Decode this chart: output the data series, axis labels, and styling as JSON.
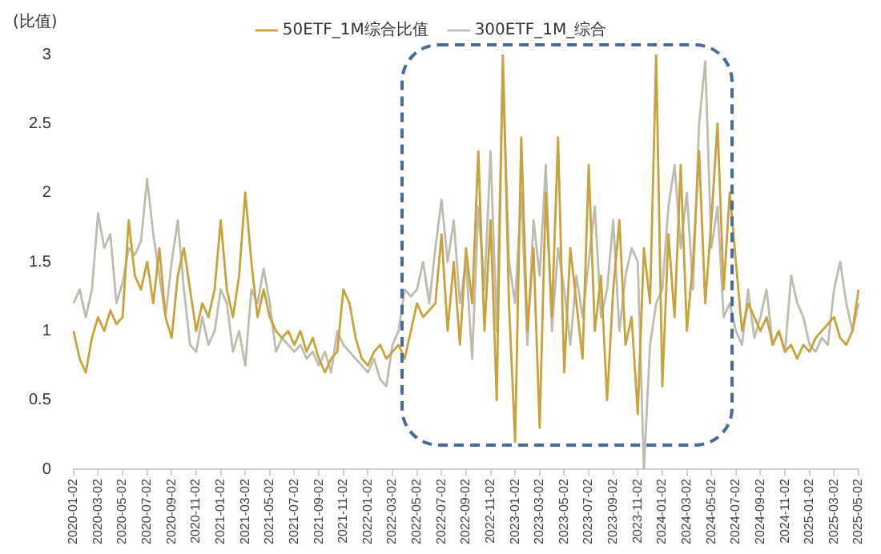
{
  "chart_data": {
    "type": "line",
    "ylabel": "(比值)",
    "categories": [
      "2020-01-02",
      null,
      null,
      null,
      "2020-03-02",
      null,
      null,
      null,
      "2020-05-02",
      null,
      null,
      null,
      "2020-07-02",
      null,
      null,
      null,
      "2020-09-02",
      null,
      null,
      null,
      "2020-11-02",
      null,
      null,
      null,
      "2021-01-02",
      null,
      null,
      null,
      "2021-03-02",
      null,
      null,
      null,
      "2021-05-02",
      null,
      null,
      null,
      "2021-07-02",
      null,
      null,
      null,
      "2021-09-02",
      null,
      null,
      null,
      "2021-11-02",
      null,
      null,
      null,
      "2022-01-02",
      null,
      null,
      null,
      "2022-03-02",
      null,
      null,
      null,
      "2022-05-02",
      null,
      null,
      null,
      "2022-07-02",
      null,
      null,
      null,
      "2022-09-02",
      null,
      null,
      null,
      "2022-11-02",
      null,
      null,
      null,
      "2023-01-02",
      null,
      null,
      null,
      "2023-03-02",
      null,
      null,
      null,
      "2023-05-02",
      null,
      null,
      null,
      "2023-07-02",
      null,
      null,
      null,
      "2023-09-02",
      null,
      null,
      null,
      "2023-11-02",
      null,
      null,
      null,
      "2024-01-02",
      null,
      null,
      null,
      "2024-03-02",
      null,
      null,
      null,
      "2024-05-02",
      null,
      null,
      null,
      "2024-07-02",
      null,
      null,
      null,
      "2024-09-02",
      null,
      null,
      null,
      "2024-11-02",
      null,
      null,
      null,
      "2025-01-02",
      null,
      null,
      null,
      "2025-03-02",
      null,
      null,
      null,
      "2025-05-02"
    ],
    "series": [
      {
        "name": "50ETF_1M综合比值",
        "color": "#c9a23c",
        "values": [
          1.0,
          0.8,
          0.7,
          0.95,
          1.1,
          1.0,
          1.15,
          1.05,
          1.1,
          1.8,
          1.4,
          1.3,
          1.5,
          1.2,
          1.6,
          1.1,
          0.95,
          1.4,
          1.6,
          1.3,
          1.0,
          1.2,
          1.1,
          1.3,
          1.8,
          1.3,
          1.1,
          1.4,
          2.0,
          1.5,
          1.1,
          1.3,
          1.1,
          1.0,
          0.95,
          1.0,
          0.9,
          1.0,
          0.85,
          0.95,
          0.8,
          0.7,
          0.8,
          0.85,
          1.3,
          1.2,
          0.95,
          0.8,
          0.75,
          0.85,
          0.9,
          0.8,
          0.85,
          0.9,
          0.8,
          1.0,
          1.2,
          1.1,
          1.15,
          1.2,
          1.7,
          1.0,
          1.5,
          0.9,
          1.6,
          1.2,
          2.3,
          1.0,
          1.8,
          0.5,
          3.0,
          1.2,
          0.2,
          2.4,
          1.0,
          1.6,
          0.3,
          2.0,
          1.1,
          2.4,
          0.7,
          1.6,
          1.2,
          0.8,
          2.2,
          1.0,
          1.4,
          0.5,
          1.3,
          1.8,
          0.9,
          1.1,
          0.4,
          1.6,
          1.2,
          3.0,
          0.6,
          1.7,
          1.1,
          2.2,
          1.0,
          1.5,
          2.3,
          1.2,
          1.8,
          2.5,
          1.3,
          2.0,
          1.5,
          1.0,
          1.2,
          1.1,
          1.0,
          1.1,
          0.9,
          1.0,
          0.85,
          0.9,
          0.8,
          0.9,
          0.85,
          0.95,
          1.0,
          1.05,
          1.1,
          0.95,
          0.9,
          1.0,
          1.3
        ]
      },
      {
        "name": "300ETF_1M_综合",
        "color": "#bdbcae",
        "values": [
          1.2,
          1.3,
          1.1,
          1.3,
          1.85,
          1.6,
          1.7,
          1.2,
          1.35,
          1.6,
          1.55,
          1.65,
          2.1,
          1.7,
          1.4,
          1.1,
          1.5,
          1.8,
          1.3,
          0.9,
          0.85,
          1.1,
          0.9,
          1.0,
          1.3,
          1.2,
          0.85,
          1.0,
          0.75,
          1.3,
          1.2,
          1.45,
          1.2,
          0.85,
          0.95,
          0.9,
          0.85,
          0.9,
          0.8,
          0.85,
          0.75,
          0.85,
          0.7,
          1.0,
          0.9,
          0.85,
          0.8,
          0.75,
          0.7,
          0.8,
          0.65,
          0.6,
          0.9,
          1.0,
          1.3,
          1.25,
          1.3,
          1.5,
          1.2,
          1.6,
          1.95,
          1.5,
          1.8,
          1.2,
          1.5,
          0.8,
          1.9,
          1.3,
          2.3,
          1.0,
          2.9,
          1.5,
          1.2,
          2.0,
          0.9,
          1.8,
          1.4,
          2.2,
          1.0,
          1.6,
          1.3,
          0.9,
          1.4,
          1.1,
          1.5,
          1.9,
          1.1,
          1.3,
          1.8,
          1.0,
          1.4,
          1.6,
          1.5,
          0.0,
          0.9,
          1.2,
          1.3,
          1.9,
          2.2,
          1.6,
          2.0,
          1.3,
          2.5,
          2.95,
          1.6,
          1.9,
          1.1,
          1.2,
          1.0,
          0.9,
          1.3,
          0.95,
          1.1,
          1.3,
          0.9,
          1.0,
          0.85,
          1.4,
          1.2,
          1.1,
          0.9,
          0.85,
          0.95,
          0.9,
          1.3,
          1.5,
          1.2,
          1.0,
          1.2
        ]
      }
    ],
    "ylim": [
      0,
      3
    ],
    "yticks": [
      0,
      0.5,
      1,
      1.5,
      2,
      2.5,
      3
    ],
    "grid": false,
    "legend": "top",
    "marker": "none",
    "line_style": "solid"
  }
}
